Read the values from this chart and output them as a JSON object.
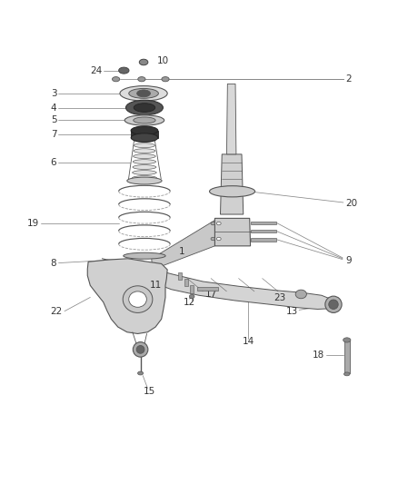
{
  "bg_color": "#ffffff",
  "line_color": "#555555",
  "label_color": "#333333",
  "label_fontsize": 7.5,
  "gray_light": "#d0d0d0",
  "gray_mid": "#aaaaaa",
  "gray_dark": "#666666",
  "gray_darker": "#333333"
}
